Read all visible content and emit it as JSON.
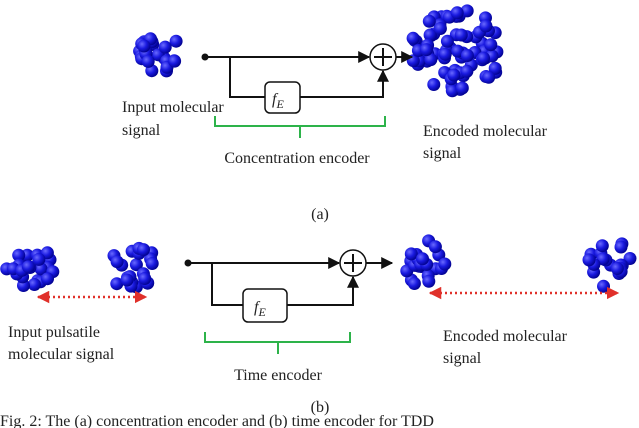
{
  "panel_a": {
    "input_label": [
      "Input molecular",
      "signal"
    ],
    "block": {
      "main": "f",
      "sub": "E"
    },
    "encoder_label": "Concentration encoder",
    "output_label": [
      "Encoded molecular",
      "signal"
    ],
    "tag": "(a)"
  },
  "panel_b": {
    "input_label": [
      "Input pulsatile",
      "molecular signal"
    ],
    "block": {
      "main": "f",
      "sub": "E"
    },
    "encoder_label": "Time encoder",
    "output_label": [
      "Encoded molecular",
      "signal"
    ],
    "tag": "(b)"
  },
  "caption": "Fig. 2: The (a) concentration encoder and (b) time encoder for TDD"
}
